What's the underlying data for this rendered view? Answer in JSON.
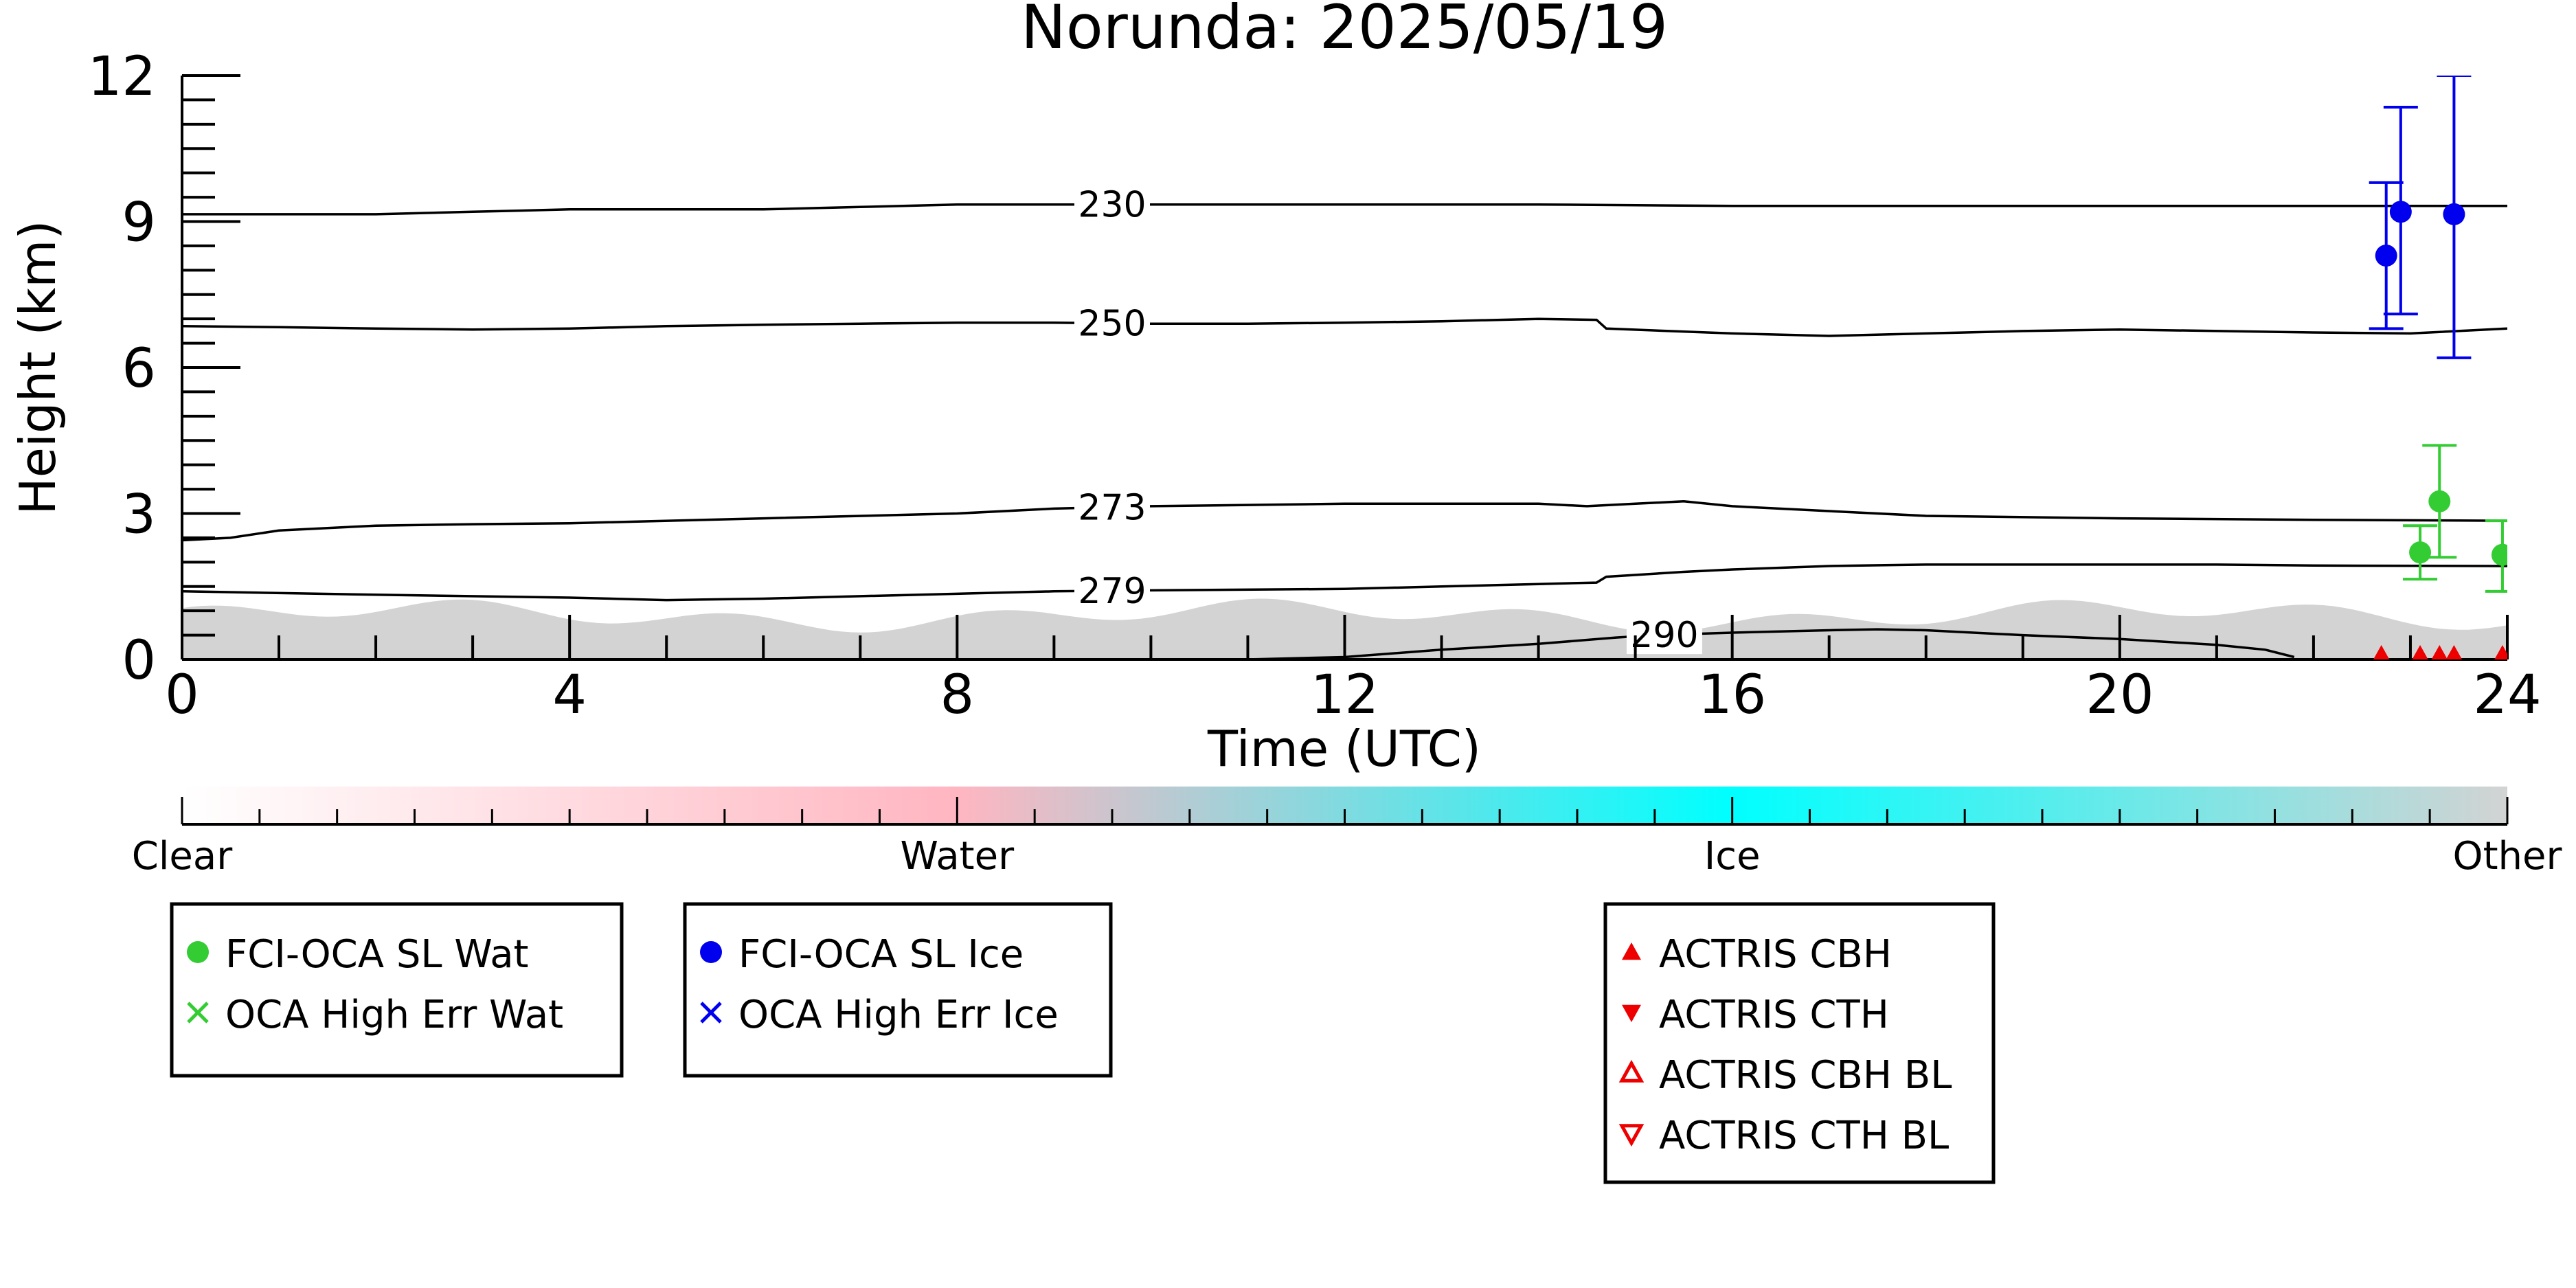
{
  "chart_data": {
    "type": "scatter",
    "title": "Norunda: 2025/05/19",
    "xlabel": "Time (UTC)",
    "ylabel": "Height (km)",
    "xlim": [
      0,
      24
    ],
    "ylim": [
      0,
      12
    ],
    "x_ticks": [
      0,
      4,
      8,
      12,
      16,
      20,
      24
    ],
    "y_ticks": [
      0,
      3,
      6,
      9,
      12
    ],
    "grid": false,
    "contour_unit": "K",
    "contours": [
      {
        "label": "230",
        "label_x": 9.6,
        "points": [
          [
            0,
            9.15
          ],
          [
            1,
            9.15
          ],
          [
            2,
            9.15
          ],
          [
            3,
            9.2
          ],
          [
            4,
            9.25
          ],
          [
            6,
            9.25
          ],
          [
            7,
            9.3
          ],
          [
            8,
            9.35
          ],
          [
            10,
            9.35
          ],
          [
            12,
            9.35
          ],
          [
            14,
            9.35
          ],
          [
            16,
            9.32
          ],
          [
            18,
            9.32
          ],
          [
            20,
            9.32
          ],
          [
            22,
            9.32
          ],
          [
            24,
            9.32
          ]
        ]
      },
      {
        "label": "250",
        "label_x": 9.6,
        "points": [
          [
            0,
            6.85
          ],
          [
            1,
            6.83
          ],
          [
            2,
            6.8
          ],
          [
            3,
            6.78
          ],
          [
            4,
            6.8
          ],
          [
            5,
            6.85
          ],
          [
            6,
            6.88
          ],
          [
            7,
            6.9
          ],
          [
            8,
            6.92
          ],
          [
            9,
            6.92
          ],
          [
            10,
            6.9
          ],
          [
            11,
            6.9
          ],
          [
            12,
            6.92
          ],
          [
            13,
            6.95
          ],
          [
            14,
            7.0
          ],
          [
            14.6,
            6.98
          ],
          [
            14.7,
            6.8
          ],
          [
            16,
            6.7
          ],
          [
            17,
            6.65
          ],
          [
            18,
            6.7
          ],
          [
            19,
            6.75
          ],
          [
            20,
            6.78
          ],
          [
            22,
            6.72
          ],
          [
            23,
            6.7
          ],
          [
            24,
            6.8
          ]
        ]
      },
      {
        "label": "273",
        "label_x": 9.6,
        "points": [
          [
            0,
            2.45
          ],
          [
            0.5,
            2.5
          ],
          [
            1,
            2.65
          ],
          [
            2,
            2.75
          ],
          [
            3,
            2.78
          ],
          [
            4,
            2.8
          ],
          [
            6,
            2.9
          ],
          [
            8,
            3.0
          ],
          [
            9,
            3.1
          ],
          [
            10,
            3.15
          ],
          [
            12,
            3.2
          ],
          [
            14,
            3.2
          ],
          [
            14.5,
            3.15
          ],
          [
            15,
            3.2
          ],
          [
            15.5,
            3.25
          ],
          [
            16,
            3.15
          ],
          [
            17,
            3.05
          ],
          [
            18,
            2.95
          ],
          [
            20,
            2.9
          ],
          [
            22,
            2.87
          ],
          [
            24,
            2.85
          ]
        ]
      },
      {
        "label": "279",
        "label_x": 9.6,
        "points": [
          [
            0,
            1.4
          ],
          [
            2,
            1.33
          ],
          [
            4,
            1.27
          ],
          [
            5,
            1.22
          ],
          [
            6,
            1.25
          ],
          [
            7,
            1.3
          ],
          [
            8,
            1.35
          ],
          [
            9,
            1.4
          ],
          [
            10,
            1.42
          ],
          [
            12,
            1.45
          ],
          [
            13,
            1.5
          ],
          [
            14,
            1.55
          ],
          [
            14.6,
            1.58
          ],
          [
            14.7,
            1.7
          ],
          [
            15.5,
            1.8
          ],
          [
            16,
            1.85
          ],
          [
            17,
            1.92
          ],
          [
            18,
            1.95
          ],
          [
            19,
            1.95
          ],
          [
            20,
            1.95
          ],
          [
            21,
            1.95
          ],
          [
            22,
            1.93
          ],
          [
            24,
            1.92
          ]
        ]
      },
      {
        "label": "290",
        "label_x": 15.3,
        "points": [
          [
            11,
            0.0
          ],
          [
            12,
            0.05
          ],
          [
            13,
            0.2
          ],
          [
            14,
            0.32
          ],
          [
            14.8,
            0.45
          ],
          [
            15.2,
            0.5
          ],
          [
            16,
            0.55
          ],
          [
            17,
            0.6
          ],
          [
            17.5,
            0.62
          ],
          [
            18,
            0.6
          ],
          [
            19,
            0.5
          ],
          [
            20,
            0.42
          ],
          [
            21,
            0.3
          ],
          [
            21.5,
            0.2
          ],
          [
            21.8,
            0.05
          ]
        ]
      }
    ],
    "background_band": {
      "y_max_low": 0.55,
      "y_max_high": 1.25
    },
    "series": [
      {
        "name": "FCI-OCA SL Wat",
        "marker": "circle",
        "color": "#33cc33",
        "points": [
          {
            "x": 23.1,
            "y": 2.2,
            "lo": 1.65,
            "hi": 2.75
          },
          {
            "x": 23.3,
            "y": 3.25,
            "lo": 2.1,
            "hi": 4.4
          },
          {
            "x": 23.95,
            "y": 2.15,
            "lo": 1.4,
            "hi": 2.85
          }
        ]
      },
      {
        "name": "OCA High Err Wat",
        "marker": "x",
        "color": "#33cc33",
        "points": []
      },
      {
        "name": "FCI-OCA SL Ice",
        "marker": "circle",
        "color": "#0000ee",
        "points": [
          {
            "x": 22.75,
            "y": 8.3,
            "lo": 6.8,
            "hi": 9.8
          },
          {
            "x": 22.9,
            "y": 9.2,
            "lo": 7.1,
            "hi": 11.35
          },
          {
            "x": 23.45,
            "y": 9.15,
            "lo": 6.2,
            "hi": 12.0
          }
        ]
      },
      {
        "name": "OCA High Err Ice",
        "marker": "x",
        "color": "#0000ee",
        "points": []
      },
      {
        "name": "ACTRIS CBH",
        "marker": "triangle-up",
        "color": "#ee0000",
        "points": [
          {
            "x": 22.7,
            "y": 0.02
          },
          {
            "x": 23.1,
            "y": 0.02
          },
          {
            "x": 23.3,
            "y": 0.02
          },
          {
            "x": 23.45,
            "y": 0.02
          },
          {
            "x": 23.95,
            "y": 0.02
          }
        ]
      },
      {
        "name": "ACTRIS CTH",
        "marker": "triangle-down",
        "color": "#ee0000",
        "points": []
      },
      {
        "name": "ACTRIS CBH BL",
        "marker": "triangle-up-open",
        "color": "#ee0000",
        "points": []
      },
      {
        "name": "ACTRIS CTH BL",
        "marker": "triangle-down-open",
        "color": "#ee0000",
        "points": []
      }
    ],
    "colorbar": {
      "labels": [
        "Clear",
        "Water",
        "Ice",
        "Other"
      ],
      "colors": [
        "#ffffff",
        "#ffb6c1",
        "#00ffff",
        "#d3d3d3"
      ]
    },
    "legends": [
      {
        "entries": [
          0,
          1
        ]
      },
      {
        "entries": [
          2,
          3
        ]
      },
      {
        "entries": [
          4,
          5,
          6,
          7
        ]
      }
    ]
  }
}
